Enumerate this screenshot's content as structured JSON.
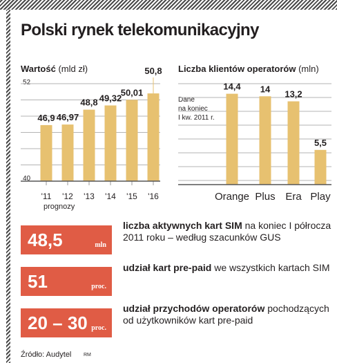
{
  "page": {
    "title": "Polski rynek telekomunikacyjny",
    "source": "Źródło: Audytel",
    "author_mark": "RM"
  },
  "colors": {
    "bar": "#e7c170",
    "accent_box": "#e05c45",
    "grid": "#9a9a9a",
    "text": "#231f20"
  },
  "chart_data": [
    {
      "type": "bar",
      "title_bold": "Wartość",
      "title_unit": "(mld zł)",
      "categories": [
        "'11",
        "'12",
        "'13",
        "'14",
        "'15",
        "'16"
      ],
      "values": [
        46.9,
        46.97,
        48.8,
        49.32,
        50.01,
        50.8
      ],
      "value_labels": [
        "46,9",
        "46,97",
        "48,8",
        "49,32",
        "50,01",
        "50,8"
      ],
      "ylim": [
        40,
        52
      ],
      "ytick_labels": [
        "52",
        "40"
      ],
      "xnote": "prognozy",
      "grid": true
    },
    {
      "type": "bar",
      "title_bold": "Liczba klientów operatorów",
      "title_unit": "(mln)",
      "note_lines": [
        "Dane",
        "na koniec",
        "I kw. 2011 r."
      ],
      "categories": [
        "Orange",
        "Plus",
        "Era",
        "Play"
      ],
      "values": [
        14.4,
        14,
        13.2,
        5.5
      ],
      "value_labels": [
        "14,4",
        "14",
        "13,2",
        "5,5"
      ],
      "ylim": [
        0,
        16
      ],
      "grid": true
    }
  ],
  "stats": [
    {
      "value": "48,5",
      "unit": "mln",
      "bold": "liczba aktywnych kart SIM",
      "text": " na koniec I półrocza 2011 roku – według szacunków GUS"
    },
    {
      "value": "51",
      "unit": "proc.",
      "bold": "udział kart pre-paid",
      "text": " we wszystkich kartach SIM"
    },
    {
      "value": "20 – 30",
      "unit": "proc.",
      "bold": "udział przychodów operatorów",
      "text": " pochodzących od użytkowników kart pre-paid"
    }
  ]
}
